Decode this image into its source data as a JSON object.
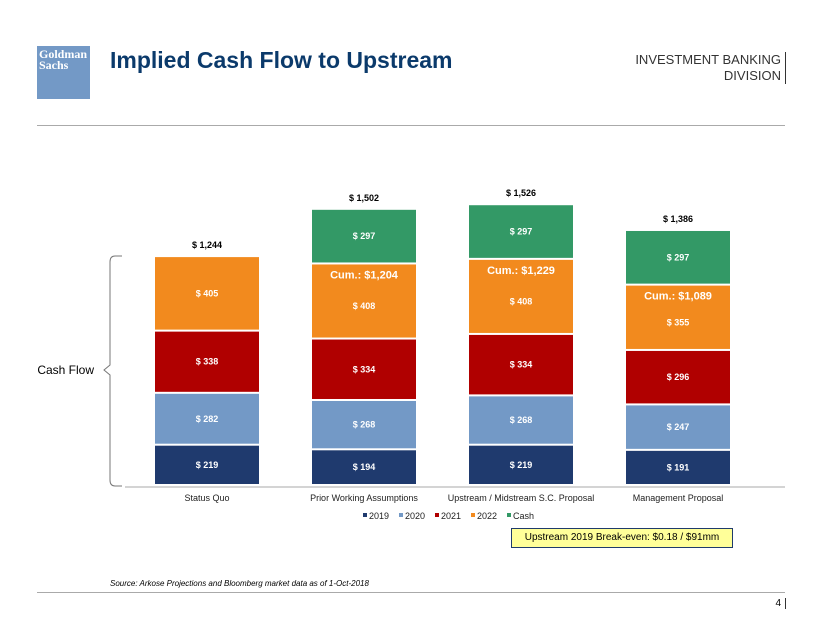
{
  "header": {
    "logo_text": "Goldman Sachs",
    "title": "Implied Cash Flow to Upstream",
    "division_line1": "INVESTMENT BANKING",
    "division_line2": "DIVISION"
  },
  "chart_data": {
    "type": "bar",
    "stacked": true,
    "categories": [
      "Status Quo",
      "Prior Working Assumptions",
      "Upstream / Midstream S.C. Proposal",
      "Management Proposal"
    ],
    "series": [
      {
        "name": "2019",
        "color": "#1f3a6e",
        "values": [
          219,
          194,
          219,
          191
        ]
      },
      {
        "name": "2020",
        "color": "#7399c6",
        "values": [
          282,
          268,
          268,
          247
        ]
      },
      {
        "name": "2021",
        "color": "#b00000",
        "values": [
          338,
          334,
          334,
          296
        ]
      },
      {
        "name": "2022",
        "color": "#f28a1e",
        "values": [
          405,
          408,
          408,
          355
        ]
      },
      {
        "name": "Cash",
        "color": "#339966",
        "values": [
          null,
          297,
          297,
          297
        ]
      }
    ],
    "totals": [
      "$ 1,244",
      "$ 1,502",
      "$ 1,526",
      "$ 1,386"
    ],
    "cumulative_labels": [
      null,
      "Cum.: $1,204",
      "Cum.: $1,229",
      "Cum.: $1,089"
    ],
    "value_prefix": "$ ",
    "bracket_label": "Cash Flow",
    "legend_position": "bottom"
  },
  "breakeven": "Upstream 2019 Break-even: $0.18 / $91mm",
  "source": "Source: Arkose Projections and Bloomberg market data as of 1-Oct-2018",
  "page_number": "4"
}
